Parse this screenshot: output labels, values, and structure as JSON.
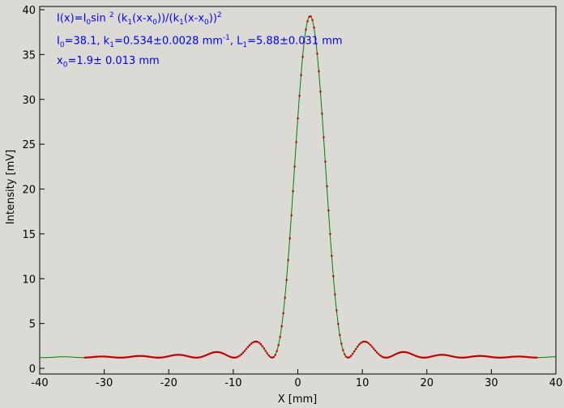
{
  "chart_data": {
    "type": "scatter",
    "xlabel": "X [mm]",
    "ylabel": "Intensity [mV]",
    "xlim": [
      -40,
      40
    ],
    "ylim": [
      0,
      40
    ],
    "x_ticks": [
      -40,
      -30,
      -20,
      -10,
      0,
      10,
      20,
      30,
      40
    ],
    "y_ticks": [
      0,
      5,
      10,
      15,
      20,
      25,
      30,
      35,
      40
    ],
    "grid": false,
    "annotations": {
      "line1": {
        "pre": "I(x)=I",
        "sub0": "0",
        "sin": "sin ",
        "sup2": "2",
        "mid": " (k",
        "sub1": "1",
        "mid2": "(x-x",
        "sub2": "0",
        "mid3": "))/(k",
        "sub3": "1",
        "mid4": "(x-x",
        "sub4": "0",
        "end": "))",
        "sup_end": "2"
      },
      "line2": {
        "I": "I",
        "I_sub": "0",
        "I_val": "=38.1,  k",
        "k_sub": "1",
        "k_val": "=0.534±0.0028 mm",
        "k_unit_sup": "-1",
        "comma": ",   L",
        "L_sub": "1",
        "L_val": "=5.88±0.031 mm"
      },
      "line3": {
        "x": "x",
        "x_sub": "0",
        "x_val": "=1.9±   0.013 mm"
      }
    },
    "series": [
      {
        "kind": "measured",
        "color": "#c00000",
        "x_range": [
          -33,
          37
        ],
        "x_step": 0.25,
        "model": "sinc_squared_plus_offset",
        "I0": 38.1,
        "k1": 0.534,
        "x0": 1.9,
        "offset": 1.2
      },
      {
        "kind": "fit",
        "color": "#008000",
        "x_range": [
          -40,
          40
        ],
        "x_step": 0.1,
        "model": "sinc_squared_plus_offset",
        "I0": 38.1,
        "k1": 0.534,
        "x0": 1.9,
        "offset": 1.2
      }
    ]
  }
}
